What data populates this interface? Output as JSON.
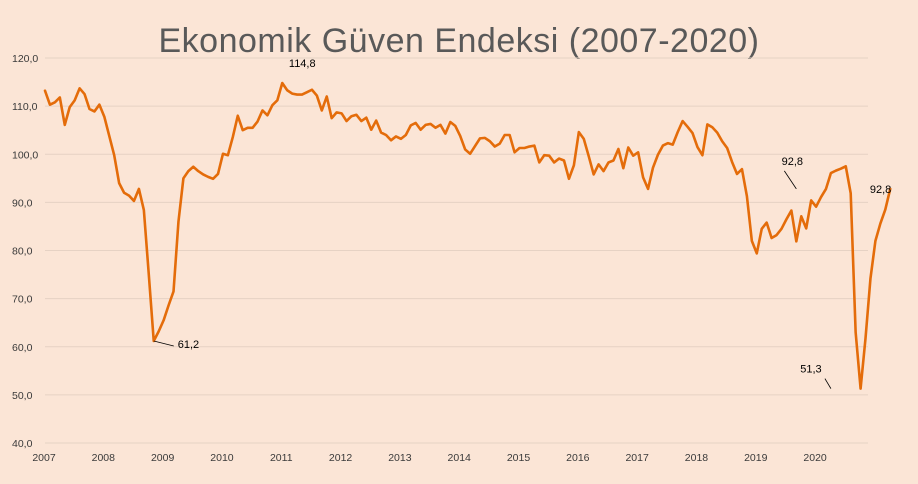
{
  "chart_data": {
    "type": "line",
    "title": "Ekonomik Güven Endeksi (2007-2020)",
    "xlabel": "",
    "ylabel": "",
    "ylim": [
      40,
      120
    ],
    "y_ticks": [
      40,
      50,
      60,
      70,
      80,
      90,
      100,
      110,
      120
    ],
    "y_tick_labels": [
      "40,0",
      "50,0",
      "60,0",
      "70,0",
      "80,0",
      "90,0",
      "100,0",
      "110,0",
      "120,0"
    ],
    "x_range": [
      2007.0,
      2020.875
    ],
    "x_ticks": [
      2007,
      2008,
      2009,
      2010,
      2011,
      2012,
      2013,
      2014,
      2015,
      2016,
      2017,
      2018,
      2019,
      2020
    ],
    "x_tick_labels": [
      "2007",
      "2008",
      "2009",
      "2010",
      "2011",
      "2012",
      "2013",
      "2014",
      "2015",
      "2016",
      "2017",
      "2018",
      "2019",
      "2020"
    ],
    "line_color": "#e46c0a",
    "grid": "horizontal",
    "series": [
      {
        "values": [
          113.2,
          110.3,
          110.8,
          111.8,
          106.1,
          109.8,
          111.2,
          113.7,
          112.5,
          109.4,
          108.9,
          110.3,
          107.8,
          103.8,
          99.8,
          94.0,
          92.0,
          91.4,
          90.3,
          92.8,
          88.4,
          75.0,
          61.2,
          63.2,
          65.5,
          68.6,
          71.5,
          86.0,
          95.0,
          96.5,
          97.4,
          96.5,
          95.8,
          95.3,
          94.9,
          95.9,
          100.1,
          99.8,
          103.6,
          108.0,
          105.0,
          105.5,
          105.5,
          106.8,
          109.1,
          108.1,
          110.2,
          111.2,
          114.8,
          113.3,
          112.6,
          112.4,
          112.4,
          112.9,
          113.4,
          112.2,
          109.1,
          112.0,
          107.5,
          108.7,
          108.5,
          106.9,
          107.9,
          108.2,
          106.9,
          107.6,
          105.1,
          107.0,
          104.5,
          104.0,
          102.9,
          103.7,
          103.2,
          104.0,
          106.0,
          106.5,
          105.1,
          106.1,
          106.3,
          105.5,
          106.1,
          104.3,
          106.7,
          105.9,
          103.8,
          101.0,
          100.1,
          101.7,
          103.3,
          103.4,
          102.7,
          101.6,
          102.2,
          104.0,
          104.0,
          100.4,
          101.3,
          101.3,
          101.6,
          101.8,
          98.3,
          99.8,
          99.7,
          98.3,
          99.1,
          98.7,
          94.9,
          97.7,
          104.6,
          103.2,
          99.6,
          95.8,
          97.9,
          96.5,
          98.3,
          98.7,
          101.1,
          97.1,
          101.4,
          99.7,
          100.4,
          95.2,
          92.8,
          97.2,
          99.9,
          101.8,
          102.3,
          102.0,
          104.6,
          106.9,
          105.7,
          104.4,
          101.5,
          99.8,
          106.2,
          105.6,
          104.5,
          102.7,
          101.3,
          98.4,
          95.9,
          96.9,
          91.3,
          82.0,
          79.4,
          84.5,
          85.8,
          82.6,
          83.2,
          84.5,
          86.5,
          88.3,
          81.9,
          87.1,
          84.6,
          90.4,
          89.1,
          91.1,
          92.8,
          96.1,
          96.6,
          97.0,
          97.5,
          91.9,
          63.0,
          51.3,
          61.8,
          74.2,
          82.0,
          85.6,
          88.5,
          92.8
        ]
      }
    ],
    "annotations": [
      {
        "label": "61,2",
        "x": 2008.8333,
        "y": 61.2
      },
      {
        "label": "114,8",
        "x": 2011.0,
        "y": 114.8
      },
      {
        "label": "92,8",
        "x": 2019.6667,
        "y": 92.8
      },
      {
        "label": "51,3",
        "x": 2020.25,
        "y": 51.3
      },
      {
        "label": "92,8",
        "x": 2020.75,
        "y": 92.8
      }
    ]
  }
}
